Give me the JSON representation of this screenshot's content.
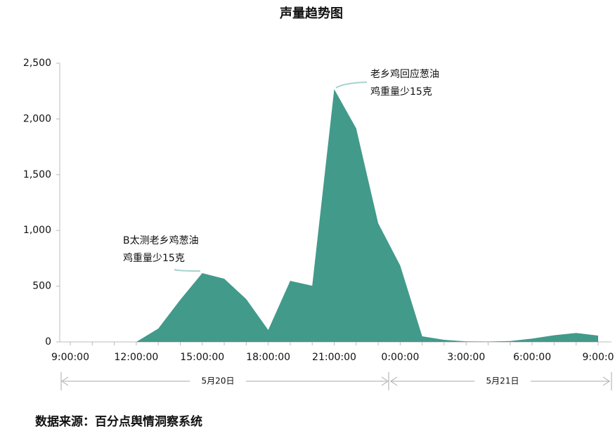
{
  "chart_data": {
    "type": "area",
    "title": "声量趋势图",
    "categories": [
      "9:00:00",
      null,
      null,
      "12:00:00",
      null,
      null,
      "15:00:00",
      null,
      null,
      "18:00:00",
      null,
      null,
      "21:00:00",
      null,
      null,
      "0:00:00",
      null,
      null,
      "3:00:00",
      null,
      null,
      "6:00:00",
      null,
      null,
      "9:00:0"
    ],
    "values": [
      0,
      0,
      0,
      0,
      120,
      378,
      617,
      567,
      384,
      107,
      548,
      504,
      2267,
      1915,
      1064,
      686,
      50,
      19,
      5,
      3,
      8,
      30,
      60,
      80,
      57
    ],
    "color": "#429a8a",
    "ylim": [
      0,
      2500
    ],
    "yticks": [
      0,
      500,
      {
        "value": 1000,
        "label": "1,000"
      },
      {
        "value": 1500,
        "label": "1,500"
      },
      {
        "value": 2000,
        "label": "2,000"
      },
      {
        "value": 2500,
        "label": "2,500"
      }
    ],
    "annotations": [
      [
        "B太测老乡鸡葱油",
        "鸡重量少15克"
      ],
      [
        "老乡鸡回应葱油",
        "鸡重量少15克"
      ]
    ],
    "date_labels": [
      "5月20日",
      "5月21日"
    ],
    "source": "数据来源：百分点舆情洞察系统"
  }
}
